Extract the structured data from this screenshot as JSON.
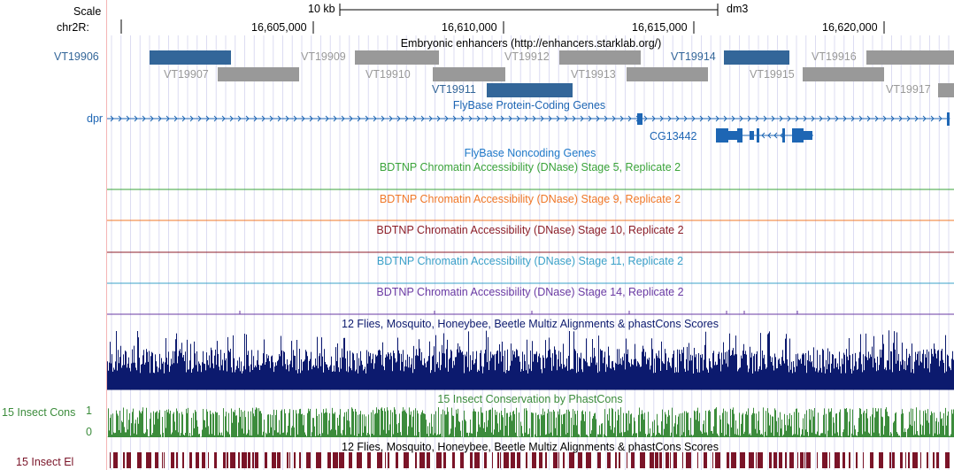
{
  "scale": {
    "label": "Scale",
    "bar_text": "10 kb",
    "assembly": "dm3"
  },
  "chrom": {
    "label": "chr2R:",
    "ticks": [
      "16,605,000",
      "16,610,000",
      "16,615,000",
      "16,620,000"
    ]
  },
  "tracks": {
    "enhancers": {
      "title": "Embryonic enhancers (http://enhancers.starklab.org/)",
      "items": [
        {
          "name": "VT19906",
          "color": "#336699",
          "style": "blue"
        },
        {
          "name": "VT19907",
          "color": "#999999",
          "style": "gray"
        },
        {
          "name": "VT19909",
          "color": "#999999",
          "style": "gray"
        },
        {
          "name": "VT19910",
          "color": "#999999",
          "style": "gray"
        },
        {
          "name": "VT19911",
          "color": "#336699",
          "style": "blue"
        },
        {
          "name": "VT19912",
          "color": "#999999",
          "style": "gray"
        },
        {
          "name": "VT19913",
          "color": "#999999",
          "style": "gray"
        },
        {
          "name": "VT19914",
          "color": "#336699",
          "style": "blue"
        },
        {
          "name": "VT19915",
          "color": "#999999",
          "style": "gray"
        },
        {
          "name": "VT19916",
          "color": "#999999",
          "style": "gray"
        },
        {
          "name": "VT19917",
          "color": "#999999",
          "style": "gray"
        }
      ]
    },
    "flybase_coding": {
      "title": "FlyBase Protein-Coding Genes",
      "gene1": "dpr",
      "gene2": "CG13442",
      "color": "#1e66b4"
    },
    "flybase_noncoding": {
      "title": "FlyBase Noncoding Genes",
      "color": "#1e78c8"
    },
    "dnase": [
      {
        "title": "BDTNP Chromatin Accessibility (DNase) Stage 5, Replicate 2",
        "color": "#3aa33a"
      },
      {
        "title": "BDTNP Chromatin Accessibility (DNase) Stage 9, Replicate 2",
        "color": "#f07828"
      },
      {
        "title": "BDTNP Chromatin Accessibility (DNase) Stage 10, Replicate 2",
        "color": "#8c1e28"
      },
      {
        "title": "BDTNP Chromatin Accessibility (DNase) Stage 11, Replicate 2",
        "color": "#3aa0c8"
      },
      {
        "title": "BDTNP Chromatin Accessibility (DNase) Stage 14, Replicate 2",
        "color": "#6a3aa3"
      }
    ],
    "multiz": {
      "title": "12 Flies, Mosquito, Honeybee, Beetle Multiz Alignments & phastCons Scores",
      "color": "#0c1a6e"
    },
    "insect_cons": {
      "title": "15 Insect Conservation by PhastCons",
      "label": "15 Insect Cons",
      "max_label": "1",
      "min_label": "0",
      "color": "#3c8c3c"
    },
    "insect_el": {
      "title": "12 Flies, Mosquito, Honeybee, Beetle Multiz Alignments & phastCons Scores",
      "label": "15 Insect El",
      "color": "#7a1428"
    }
  }
}
